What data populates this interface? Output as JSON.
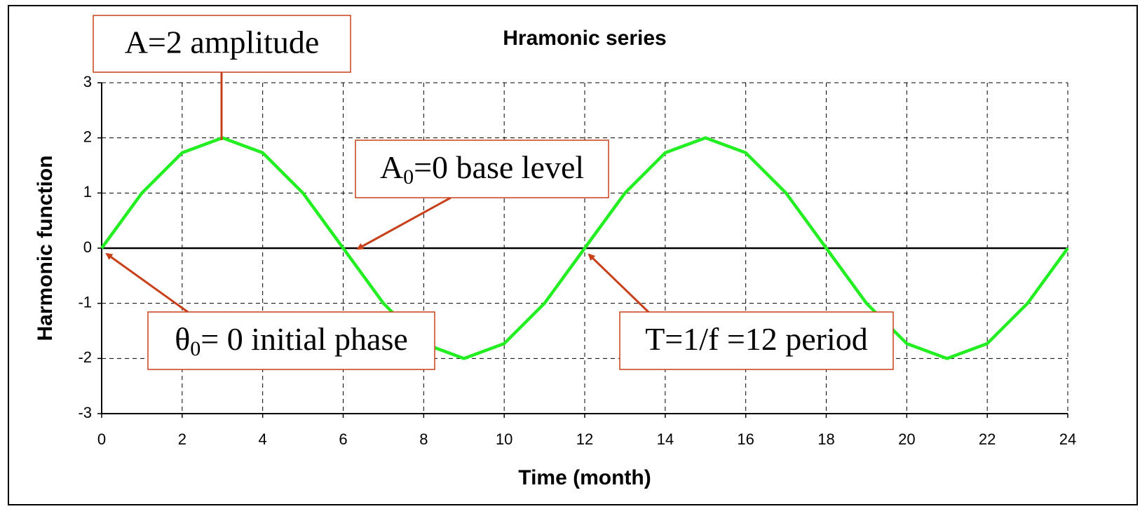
{
  "chart_data": {
    "type": "line",
    "title": "Hramonic series",
    "x_label": "Time  (month)",
    "y_label": "Harmonic function",
    "x": [
      0,
      1,
      2,
      3,
      4,
      5,
      6,
      7,
      8,
      9,
      10,
      11,
      12,
      13,
      14,
      15,
      16,
      17,
      18,
      19,
      20,
      21,
      22,
      23,
      24
    ],
    "series": [
      {
        "name": "Harmonic function",
        "color": "#22ee22",
        "values": [
          0,
          1,
          1.73,
          2,
          1.73,
          1,
          0,
          -1,
          -1.73,
          -2,
          -1.73,
          -1,
          0,
          1,
          1.73,
          2,
          1.73,
          1,
          0,
          -1,
          -1.73,
          -2,
          -1.73,
          -1,
          0
        ]
      }
    ],
    "xlim": [
      0,
      24
    ],
    "xticks": [
      0,
      2,
      4,
      6,
      8,
      10,
      12,
      14,
      16,
      18,
      20,
      22,
      24
    ],
    "ylim": [
      -3,
      3
    ],
    "yticks": [
      -3,
      -2,
      -1,
      0,
      1,
      2,
      3
    ],
    "grid": true,
    "annotations": [
      {
        "text": "A=2 amplitude"
      },
      {
        "main": "A",
        "subscript": "0",
        "text": "=0 base level"
      },
      {
        "main": "θ",
        "subscript": "0",
        "text": "= 0 initial phase"
      },
      {
        "text": "T=1/f =12 period"
      }
    ]
  }
}
